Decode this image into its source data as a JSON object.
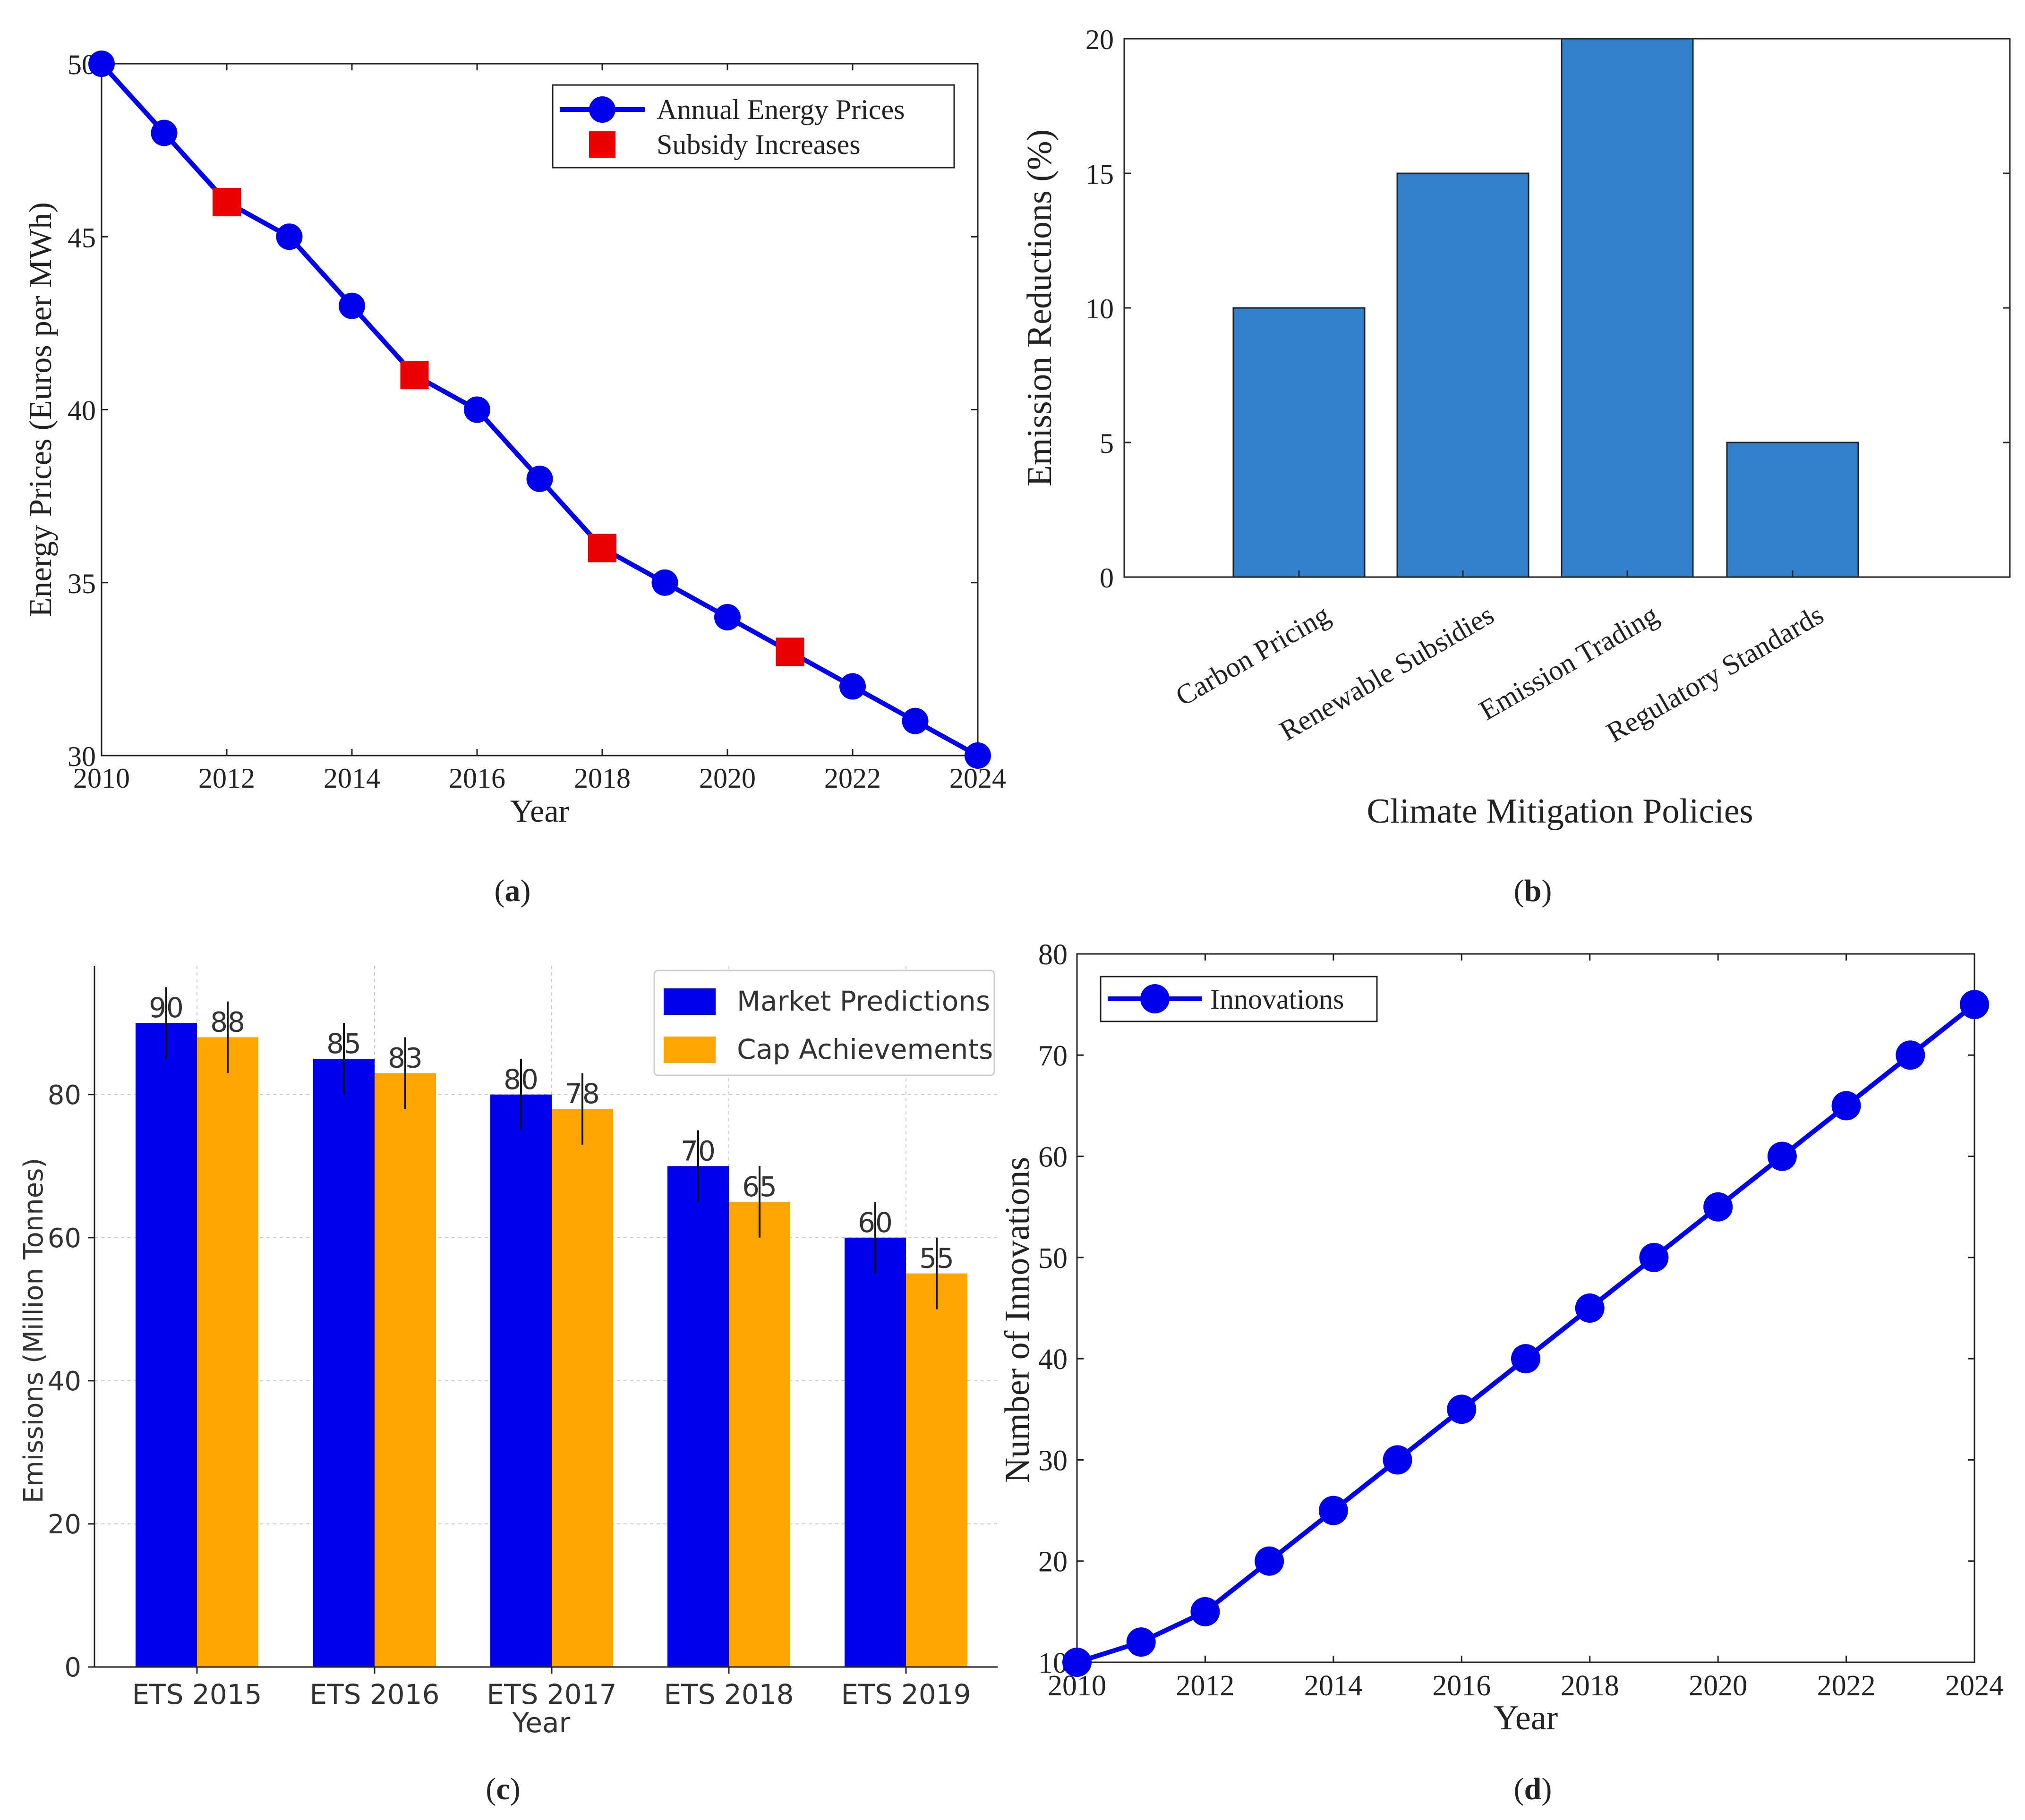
{
  "colors": {
    "line_blue": "#0000EE",
    "subsidy_red": "#EE0000",
    "bar_steel": "#3380CC",
    "bar_blue": "#0000EE",
    "bar_orange": "#FFA500",
    "axis": "#222222",
    "grid_c": "#C8C8C8"
  },
  "captions": {
    "a": [
      "(",
      "a",
      ")"
    ],
    "b": [
      "(",
      "b",
      ")"
    ],
    "c": [
      "(",
      "c",
      ")"
    ],
    "d": [
      "(",
      "d",
      ")"
    ]
  },
  "chart_data": [
    {
      "id": "a",
      "type": "line",
      "xlabel": "Year",
      "ylabel": "Energy Prices (Euros per MWh)",
      "xlim": [
        2010,
        2024
      ],
      "ylim": [
        30,
        50
      ],
      "xticks": [
        2010,
        2012,
        2014,
        2016,
        2018,
        2020,
        2022,
        2024
      ],
      "yticks": [
        30,
        35,
        40,
        45,
        50
      ],
      "legend_position": "top-right",
      "series": [
        {
          "name": "Annual Energy Prices",
          "x": [
            2010,
            2011,
            2012,
            2013,
            2014,
            2015,
            2016,
            2017,
            2018,
            2019,
            2020,
            2021,
            2022,
            2023,
            2024
          ],
          "y": [
            50,
            48,
            46,
            45,
            43,
            41,
            40,
            38,
            36,
            35,
            34,
            33,
            32,
            31,
            30
          ]
        },
        {
          "name": "Subsidy Increases",
          "x": [
            2012,
            2015,
            2018,
            2021
          ],
          "y": [
            46,
            41,
            36,
            33
          ]
        }
      ]
    },
    {
      "id": "b",
      "type": "bar",
      "xlabel": "Climate Mitigation Policies",
      "ylabel": "Emission Reductions (%)",
      "categories": [
        "Carbon Pricing",
        "Renewable Subsidies",
        "Emission Trading",
        "Regulatory Standards"
      ],
      "values": [
        10,
        15,
        20,
        5
      ],
      "ylim": [
        0,
        20
      ],
      "yticks": [
        0,
        5,
        10,
        15,
        20
      ]
    },
    {
      "id": "c",
      "type": "bar",
      "xlabel": "Year",
      "ylabel": "Emissions (Million Tonnes)",
      "categories": [
        "ETS 2015",
        "ETS 2016",
        "ETS 2017",
        "ETS 2018",
        "ETS 2019"
      ],
      "ylim": [
        0,
        98
      ],
      "yticks": [
        0,
        20,
        40,
        60,
        80
      ],
      "grid": true,
      "legend_position": "top-right",
      "series": [
        {
          "name": "Market Predictions",
          "values": [
            90,
            85,
            80,
            70,
            60
          ],
          "labels": [
            "90",
            "85",
            "80",
            "70",
            "60"
          ],
          "error": [
            5,
            5,
            5,
            5,
            5
          ]
        },
        {
          "name": "Cap Achievements",
          "values": [
            88,
            83,
            78,
            65,
            55
          ],
          "labels": [
            "88",
            "83",
            "78",
            "65",
            "55"
          ],
          "error": [
            5,
            5,
            5,
            5,
            5
          ]
        }
      ]
    },
    {
      "id": "d",
      "type": "line",
      "xlabel": "Year",
      "ylabel": "Number of Innovations",
      "xlim": [
        2010,
        2024
      ],
      "ylim": [
        10,
        80
      ],
      "xticks": [
        2010,
        2012,
        2014,
        2016,
        2018,
        2020,
        2022,
        2024
      ],
      "yticks": [
        10,
        20,
        30,
        40,
        50,
        60,
        70,
        80
      ],
      "legend_position": "top-left",
      "series": [
        {
          "name": "Innovations",
          "x": [
            2010,
            2011,
            2012,
            2013,
            2014,
            2015,
            2016,
            2017,
            2018,
            2019,
            2020,
            2021,
            2022,
            2023,
            2024
          ],
          "y": [
            10,
            12,
            15,
            20,
            25,
            30,
            35,
            40,
            45,
            50,
            55,
            60,
            65,
            70,
            75
          ]
        }
      ]
    }
  ]
}
